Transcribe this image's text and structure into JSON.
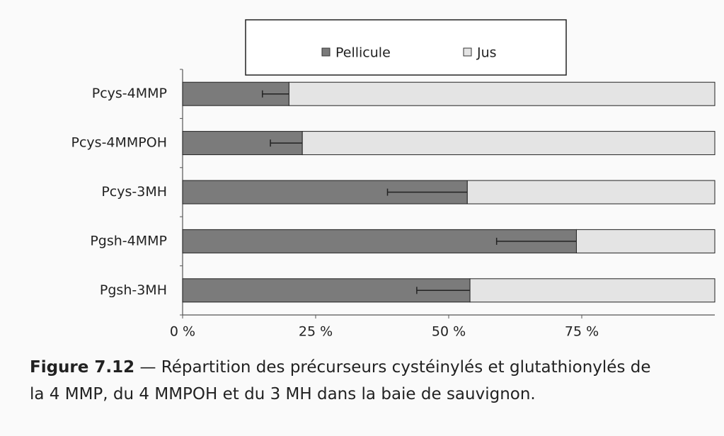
{
  "chart_data": {
    "type": "stacked-bar-horizontal",
    "categories": [
      "Pcys-4MMP",
      "Pcys-4MMPOH",
      "Pcys-3MH",
      "Pgsh-4MMP",
      "Pgsh-3MH"
    ],
    "series": [
      {
        "name": "Pellicule",
        "color": "#7b7b7b",
        "values": [
          20,
          22.5,
          53.5,
          74,
          54
        ],
        "errors": [
          5,
          6,
          15,
          15,
          10
        ]
      },
      {
        "name": "Jus",
        "color": "#e4e4e4",
        "values": [
          80,
          77.5,
          46.5,
          26,
          46
        ]
      }
    ],
    "xlim": [
      0,
      100
    ],
    "xticks": [
      {
        "value": 0,
        "label": "0 %"
      },
      {
        "value": 25,
        "label": "25 %"
      },
      {
        "value": 50,
        "label": "50 %"
      },
      {
        "value": 75,
        "label": "75 %"
      }
    ],
    "caption_label": "Figure 7.12",
    "caption": "— Répartition des précurseurs cystéinylés et glutathionylés de la 4 MMP, du 4 MMPOH et du 3 MH dans la baie de sauvignon."
  }
}
